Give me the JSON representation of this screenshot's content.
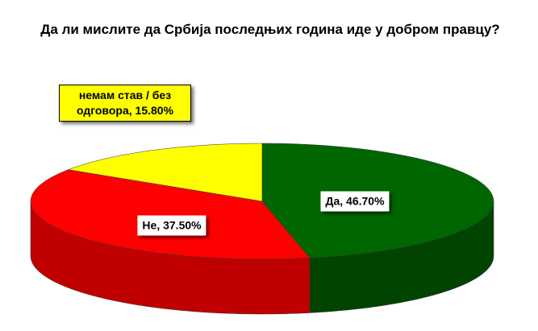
{
  "chart_data": {
    "type": "pie3d",
    "title": "Да ли мислите да Србија последњих година иде у добром правцу?",
    "categories": [
      "Да",
      "Не",
      "немам став / без одговора"
    ],
    "values": [
      46.7,
      37.5,
      15.8
    ],
    "value_labels": [
      "46.70%",
      "37.50%",
      "15.80%"
    ],
    "colors": [
      "#006600",
      "#ff0000",
      "#ffff00"
    ],
    "side_colors": [
      "#004400",
      "#c00000",
      "#bdbd00"
    ]
  }
}
